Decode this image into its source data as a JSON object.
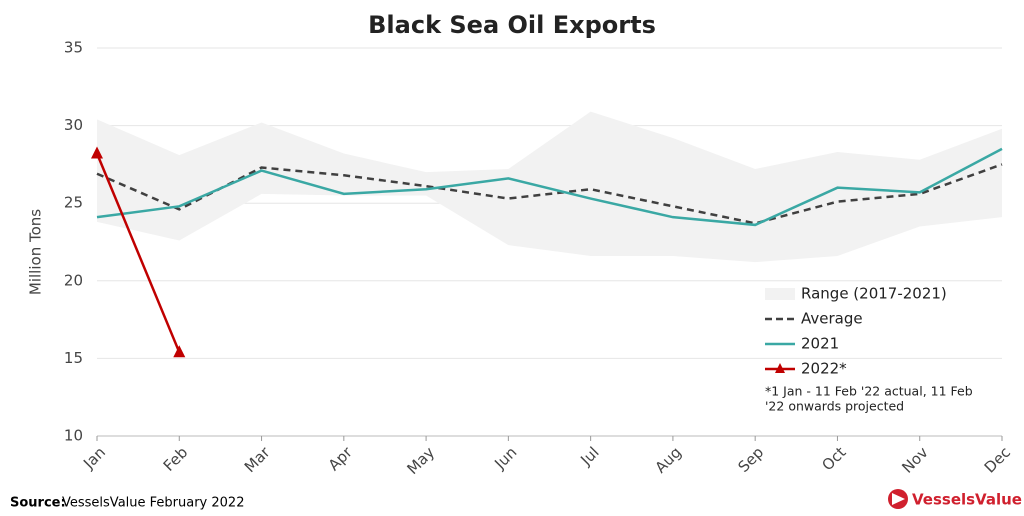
{
  "chart_data": {
    "type": "line",
    "title": "Black Sea Oil Exports",
    "y_label": "Million Tons",
    "categories": [
      "Jan",
      "Feb",
      "Mar",
      "Apr",
      "May",
      "Jun",
      "Jul",
      "Aug",
      "Sep",
      "Oct",
      "Nov",
      "Dec"
    ],
    "ylim": [
      10,
      35
    ],
    "yticks": [
      10,
      15,
      20,
      25,
      30,
      35
    ],
    "grid": true,
    "range": {
      "name": "Range (2017-2021)",
      "color": "#f2f2f2",
      "high": [
        30.4,
        28.1,
        30.2,
        28.2,
        27.0,
        27.2,
        30.9,
        29.2,
        27.2,
        28.3,
        27.8,
        29.8
      ],
      "low": [
        23.8,
        22.6,
        25.6,
        25.5,
        25.5,
        22.3,
        21.6,
        21.6,
        21.2,
        21.6,
        23.5,
        24.1
      ]
    },
    "series": [
      {
        "name": "Average",
        "color": "#404040",
        "dashed": true,
        "values": [
          26.9,
          24.6,
          27.3,
          26.8,
          26.1,
          25.3,
          25.9,
          24.8,
          23.7,
          25.1,
          25.6,
          27.5
        ]
      },
      {
        "name": "2021",
        "color": "#3aa8a4",
        "values": [
          24.1,
          24.8,
          27.1,
          25.6,
          25.9,
          26.6,
          25.3,
          24.1,
          23.6,
          26.0,
          25.7,
          28.5
        ]
      },
      {
        "name": "2022*",
        "color": "#c00000",
        "marker": "triangle",
        "values": [
          28.2,
          15.4,
          null,
          null,
          null,
          null,
          null,
          null,
          null,
          null,
          null,
          null
        ]
      }
    ],
    "note": [
      "*1 Jan - 11 Feb '22 actual, 11 Feb",
      "'22 onwards projected"
    ],
    "source_label": "Source:",
    "source": "VesselsValue February 2022",
    "logo": "VesselsValue"
  }
}
